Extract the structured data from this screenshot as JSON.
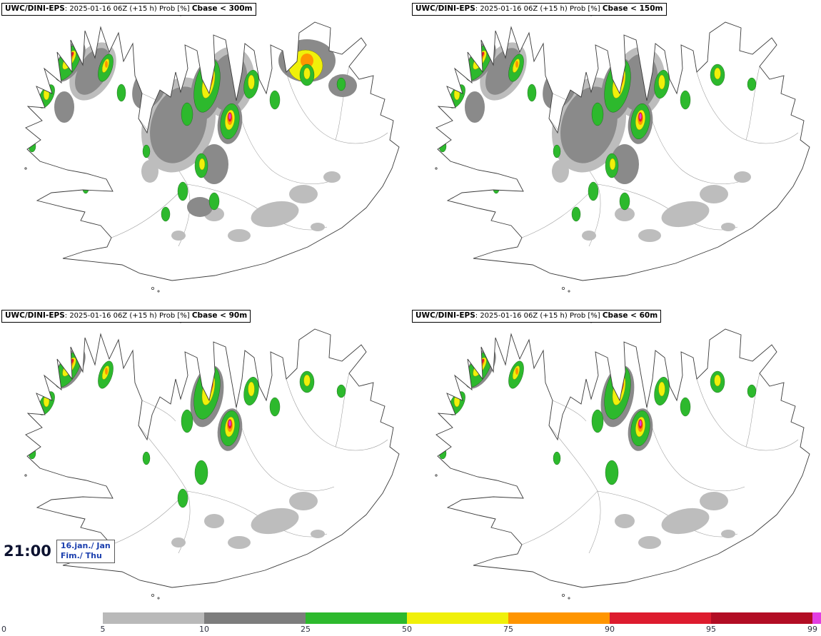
{
  "panels": [
    {
      "model": "UWC/DINI-EPS",
      "info": ": 2025-01-16 06Z (+15 h) Prob [%] ",
      "threshold": "Cbase < 300m"
    },
    {
      "model": "UWC/DINI-EPS",
      "info": ": 2025-01-16 06Z (+15 h) Prob [%] ",
      "threshold": "Cbase < 150m"
    },
    {
      "model": "UWC/DINI-EPS",
      "info": ": 2025-01-16 06Z (+15 h) Prob [%] ",
      "threshold": "Cbase < 90m"
    },
    {
      "model": "UWC/DINI-EPS",
      "info": ": 2025-01-16 06Z (+15 h) Prob [%] ",
      "threshold": "Cbase < 60m"
    }
  ],
  "footer": {
    "time": "21:00",
    "date_line1": "16.jan./ Jan",
    "date_line2": "Fim./ Thu"
  },
  "legend": {
    "ticks": [
      "0",
      "5",
      "10",
      "25",
      "50",
      "75",
      "90",
      "95",
      "99"
    ],
    "segment_colors": [
      "#ffffff",
      "#b9b9b9",
      "#7d7d7d",
      "#2db92d",
      "#f0f00a",
      "#ff9500",
      "#dd1c2e",
      "#b20d24"
    ],
    "overflow_color": "#e23ee2"
  },
  "colors": {
    "time_text": "#0c1230",
    "date_text": "#1b3fae"
  }
}
